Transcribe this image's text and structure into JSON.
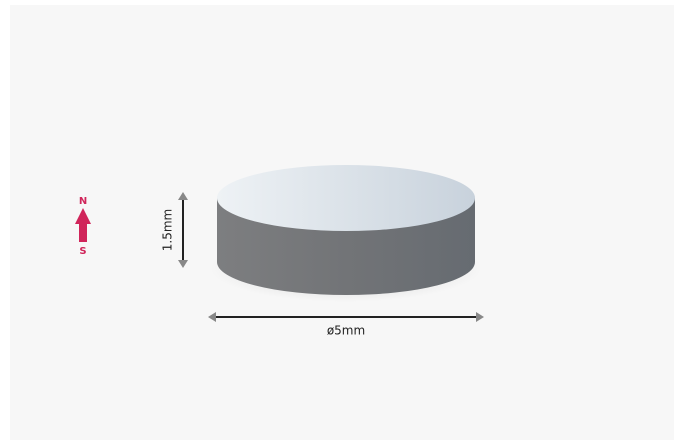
{
  "pole_north": "N",
  "pole_south": "S",
  "height_label": "1.5mm",
  "diameter_label": "ø5mm"
}
